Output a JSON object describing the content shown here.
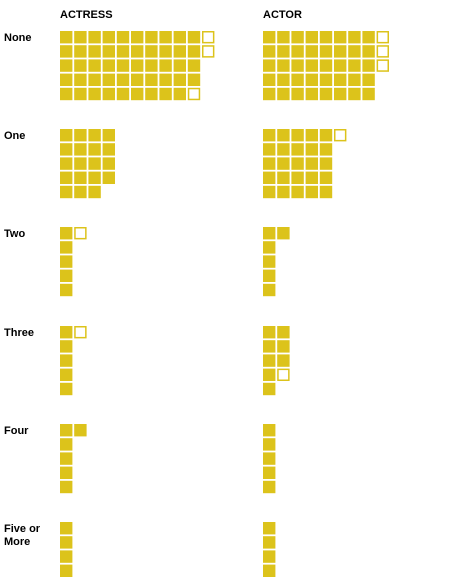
{
  "chart_data": {
    "type": "waffle",
    "columns": [
      "ACTRESS",
      "ACTOR"
    ],
    "rows": [
      {
        "label": [
          "None"
        ],
        "actress": {
          "filled": [
            10,
            10,
            10,
            10,
            9
          ],
          "outlined_at": [
            [
              0,
              10
            ],
            [
              1,
              10
            ],
            [
              4,
              9
            ]
          ]
        },
        "actor": {
          "filled": [
            8,
            8,
            8,
            8,
            8
          ],
          "outlined_at": [
            [
              0,
              8
            ],
            [
              1,
              8
            ],
            [
              2,
              8
            ]
          ]
        }
      },
      {
        "label": [
          "One"
        ],
        "actress": {
          "filled": [
            4,
            4,
            4,
            4,
            3
          ],
          "outlined_at": []
        },
        "actor": {
          "filled": [
            5,
            5,
            5,
            5,
            5
          ],
          "outlined_at": [
            [
              0,
              5
            ]
          ]
        }
      },
      {
        "label": [
          "Two"
        ],
        "actress": {
          "filled": [
            1,
            1,
            1,
            1,
            1
          ],
          "outlined_at": [
            [
              0,
              1
            ]
          ]
        },
        "actor": {
          "filled": [
            2,
            1,
            1,
            1,
            1
          ],
          "outlined_at": []
        }
      },
      {
        "label": [
          "Three"
        ],
        "actress": {
          "filled": [
            1,
            1,
            1,
            1,
            1
          ],
          "outlined_at": [
            [
              0,
              1
            ]
          ]
        },
        "actor": {
          "filled": [
            2,
            2,
            2,
            1,
            1
          ],
          "outlined_at": [
            [
              3,
              1
            ]
          ]
        }
      },
      {
        "label": [
          "Four"
        ],
        "actress": {
          "filled": [
            2,
            1,
            1,
            1,
            1
          ],
          "outlined_at": []
        },
        "actor": {
          "filled": [
            1,
            1,
            1,
            1,
            1
          ],
          "outlined_at": []
        }
      },
      {
        "label": [
          "Five or",
          "More"
        ],
        "actress": {
          "filled": [
            1,
            1,
            1,
            1
          ],
          "outlined_at": []
        },
        "actor": {
          "filled": [
            1,
            1,
            1,
            1
          ],
          "outlined_at": []
        }
      }
    ],
    "colors": {
      "filled": "#dcc31b",
      "outline": "#dcc31b"
    }
  }
}
